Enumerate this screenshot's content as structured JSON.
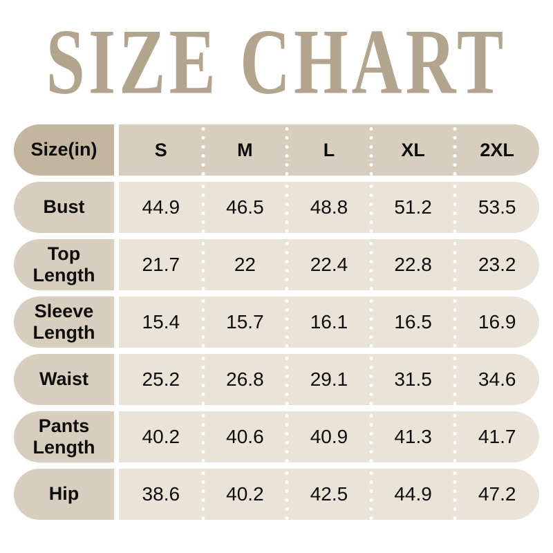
{
  "title": "SIZE CHART",
  "colors": {
    "page_bg": "#ffffff",
    "title_color": "#b3a48d",
    "header_label_bg": "#c4b59e",
    "header_row_bg": "#d8cebd",
    "row_label_bg": "#d8cebd",
    "row_data_bg": "#eae3d7",
    "text_color": "#0d0d0d",
    "dot_color": "#ffffff"
  },
  "chart_data": {
    "type": "table",
    "title": "SIZE CHART",
    "unit": "inches",
    "corner_label": "Size(in)",
    "columns": [
      "S",
      "M",
      "L",
      "XL",
      "2XL"
    ],
    "rows": [
      {
        "label": "Bust",
        "values": [
          "44.9",
          "46.5",
          "48.8",
          "51.2",
          "53.5"
        ]
      },
      {
        "label": "Top Length",
        "values": [
          "21.7",
          "22",
          "22.4",
          "22.8",
          "23.2"
        ]
      },
      {
        "label": "Sleeve Length",
        "values": [
          "15.4",
          "15.7",
          "16.1",
          "16.5",
          "16.9"
        ]
      },
      {
        "label": "Waist",
        "values": [
          "25.2",
          "26.8",
          "29.1",
          "31.5",
          "34.6"
        ]
      },
      {
        "label": "Pants Length",
        "values": [
          "40.2",
          "40.6",
          "40.9",
          "41.3",
          "41.7"
        ]
      },
      {
        "label": "Hip",
        "values": [
          "38.6",
          "40.2",
          "42.5",
          "44.9",
          "47.2"
        ]
      }
    ]
  }
}
